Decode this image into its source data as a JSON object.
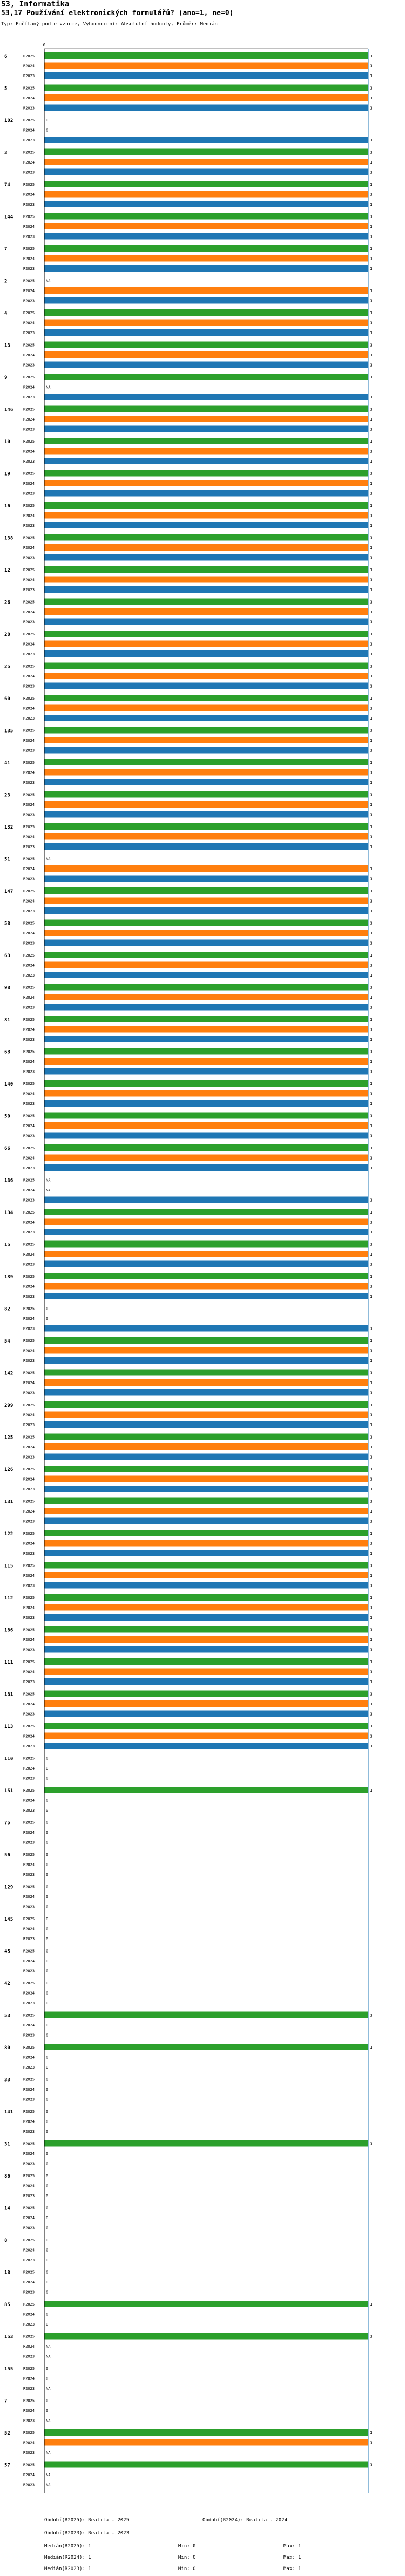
{
  "header": {
    "section": "53, Informatika",
    "question": "53,17 Používání elektronických formulářů? (ano=1, ne=0)",
    "info": "Typ: Počítaný podle vzorce, Vyhodnocení: Absolutní hodnoty, Průměr: Medián"
  },
  "colors": {
    "r2025": "#2ca02c",
    "r2024": "#ff7f0e",
    "r2023": "#1f77b4",
    "axis": "#1f77b4"
  },
  "chart_data": {
    "type": "bar",
    "orientation": "horizontal",
    "xlim": [
      0,
      1
    ],
    "axis_tick_top": "0",
    "series_names": [
      "R2025",
      "R2024",
      "R2023"
    ],
    "categories": [
      "6",
      "5",
      "102",
      "3",
      "74",
      "144",
      "7",
      "2",
      "4",
      "13",
      "9",
      "146",
      "10",
      "19",
      "16",
      "138",
      "12",
      "26",
      "28",
      "25",
      "60",
      "135",
      "41",
      "23",
      "132",
      "51",
      "147",
      "58",
      "63",
      "98",
      "81",
      "68",
      "140",
      "50",
      "66",
      "136",
      "134",
      "15",
      "139",
      "82",
      "54",
      "142",
      "299",
      "125",
      "126",
      "131",
      "122",
      "115",
      "112",
      "186",
      "111",
      "181",
      "113",
      "110",
      "151",
      "75",
      "56",
      "129",
      "145",
      "45",
      "42",
      "53",
      "80",
      "33",
      "141",
      "31",
      "86",
      "14",
      "8",
      "18",
      "85",
      "153",
      "155",
      "7",
      "52",
      "57"
    ],
    "values": [
      [
        1,
        1,
        1
      ],
      [
        1,
        1,
        1
      ],
      [
        0,
        0,
        1
      ],
      [
        1,
        1,
        1
      ],
      [
        1,
        1,
        1
      ],
      [
        1,
        1,
        1
      ],
      [
        1,
        1,
        1
      ],
      [
        "NA",
        1,
        1
      ],
      [
        1,
        1,
        1
      ],
      [
        1,
        1,
        1
      ],
      [
        1,
        "NA",
        1
      ],
      [
        1,
        1,
        1
      ],
      [
        1,
        1,
        1
      ],
      [
        1,
        1,
        1
      ],
      [
        1,
        1,
        1
      ],
      [
        1,
        1,
        1
      ],
      [
        1,
        1,
        1
      ],
      [
        1,
        1,
        1
      ],
      [
        1,
        1,
        1
      ],
      [
        1,
        1,
        1
      ],
      [
        1,
        1,
        1
      ],
      [
        1,
        1,
        1
      ],
      [
        1,
        1,
        1
      ],
      [
        1,
        1,
        1
      ],
      [
        1,
        1,
        1
      ],
      [
        "NA",
        1,
        1
      ],
      [
        1,
        1,
        1
      ],
      [
        1,
        1,
        1
      ],
      [
        1,
        1,
        1
      ],
      [
        1,
        1,
        1
      ],
      [
        1,
        1,
        1
      ],
      [
        1,
        1,
        1
      ],
      [
        1,
        1,
        1
      ],
      [
        1,
        1,
        1
      ],
      [
        1,
        1,
        1
      ],
      [
        "NA",
        "NA",
        1
      ],
      [
        1,
        1,
        1
      ],
      [
        1,
        1,
        1
      ],
      [
        1,
        1,
        1
      ],
      [
        0,
        0,
        1
      ],
      [
        1,
        1,
        1
      ],
      [
        1,
        1,
        1
      ],
      [
        1,
        1,
        1
      ],
      [
        1,
        1,
        1
      ],
      [
        1,
        1,
        1
      ],
      [
        1,
        1,
        1
      ],
      [
        1,
        1,
        1
      ],
      [
        1,
        1,
        1
      ],
      [
        1,
        1,
        1
      ],
      [
        1,
        1,
        1
      ],
      [
        1,
        1,
        1
      ],
      [
        1,
        1,
        1
      ],
      [
        1,
        1,
        1
      ],
      [
        0,
        0,
        0
      ],
      [
        1,
        0,
        0
      ],
      [
        0,
        0,
        0
      ],
      [
        0,
        0,
        0
      ],
      [
        0,
        0,
        0
      ],
      [
        0,
        0,
        0
      ],
      [
        0,
        0,
        0
      ],
      [
        0,
        0,
        0
      ],
      [
        1,
        0,
        0
      ],
      [
        1,
        0,
        0
      ],
      [
        0,
        0,
        0
      ],
      [
        0,
        0,
        0
      ],
      [
        1,
        0,
        0
      ],
      [
        0,
        0,
        0
      ],
      [
        0,
        0,
        0
      ],
      [
        0,
        0,
        0
      ],
      [
        0,
        0,
        0
      ],
      [
        1,
        0,
        0
      ],
      [
        1,
        "NA",
        "NA"
      ],
      [
        0,
        0,
        "NA"
      ],
      [
        0,
        0,
        "NA"
      ],
      [
        1,
        1,
        "NA"
      ],
      [
        1,
        "NA",
        "NA"
      ]
    ]
  },
  "legend": {
    "col1": [
      "Období(R2025): Realita - 2025",
      "Období(R2023): Realita - 2023",
      "Medián(R2025): 1",
      "Medián(R2024): 1",
      "Medián(R2023): 1"
    ],
    "col2": [
      "Období(R2024): Realita - 2024",
      "",
      "Min: 0",
      "Min: 0",
      "Min: 0"
    ],
    "col3": [
      "",
      "",
      "Max: 1",
      "Max: 1",
      "Max: 1"
    ]
  }
}
